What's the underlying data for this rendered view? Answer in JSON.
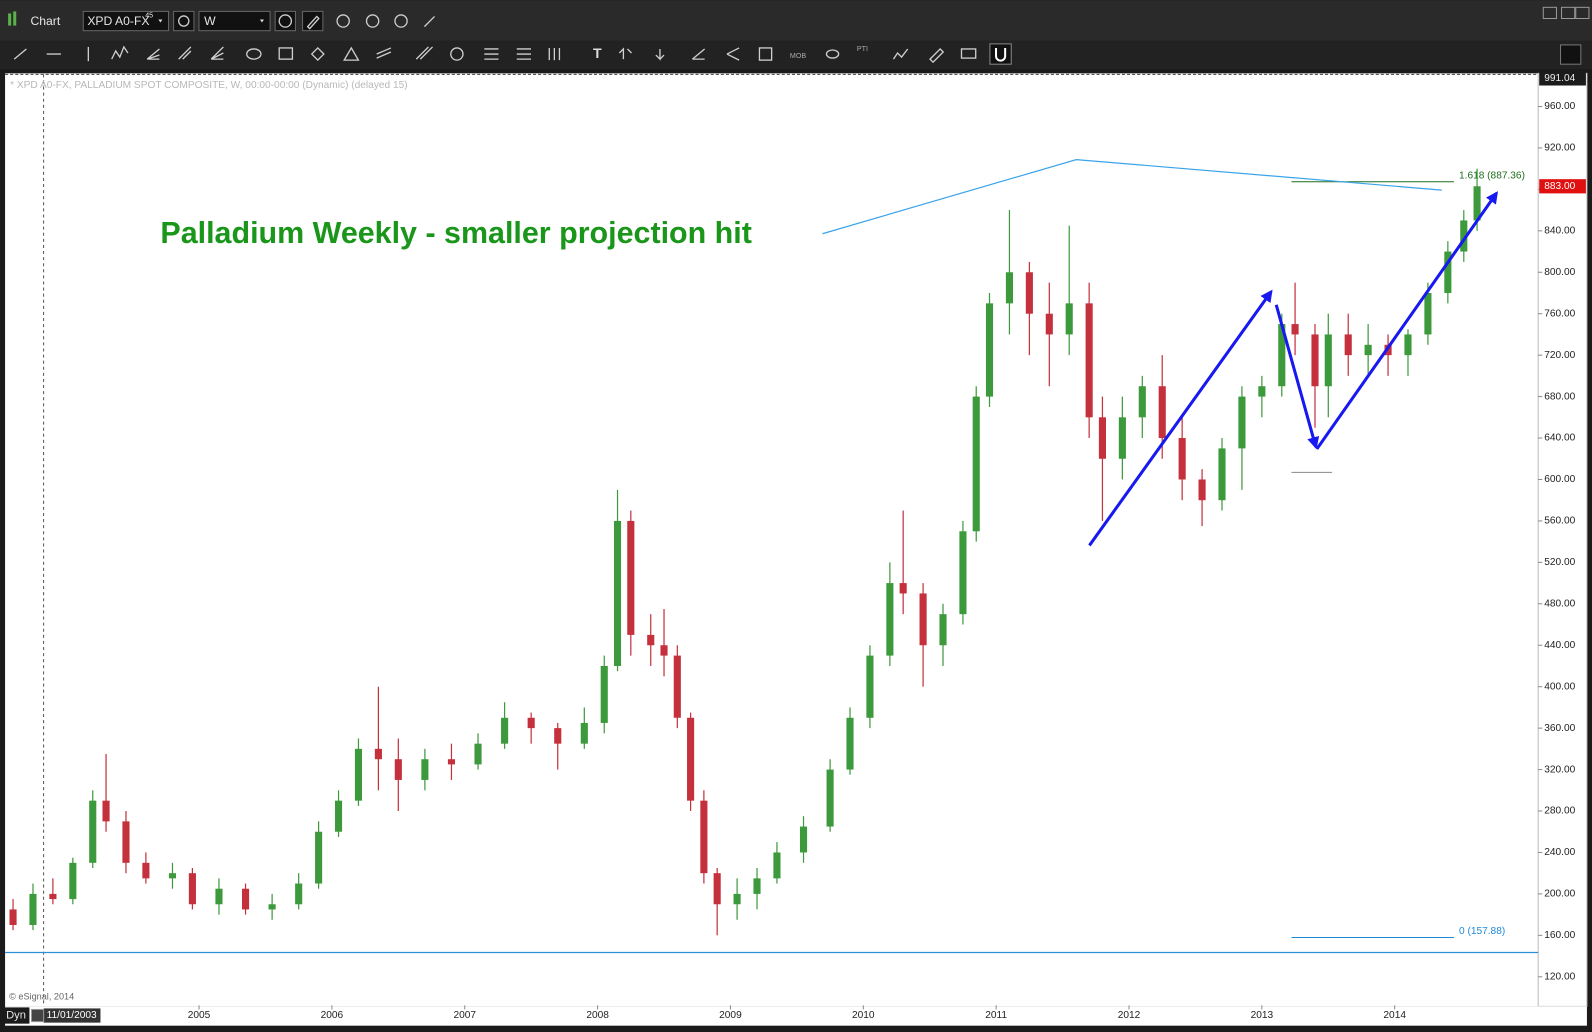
{
  "window": {
    "title": "Chart",
    "symbol": "XPD A0-FX",
    "symbol_sup": "45",
    "interval": "W",
    "toolbar_labels": [
      "T",
      "MOB",
      "PTI"
    ]
  },
  "chart_data": {
    "type": "candlestick",
    "title": "Palladium Weekly - smaller projection hit",
    "subtitle": "* XPD A0-FX, PALLADIUM SPOT COMPOSITE, W, 00:00-00:00 (Dynamic) (delayed 15)",
    "source": "© eSignal, 2014",
    "mode": "Dyn",
    "cursor": {
      "x": 2003.83,
      "label": "11/01/2003"
    },
    "x": [
      2003.6,
      2003.75,
      2003.9,
      2004.05,
      2004.2,
      2004.3,
      2004.45,
      2004.6,
      2004.8,
      2004.95,
      2005.15,
      2005.35,
      2005.55,
      2005.75,
      2005.9,
      2006.05,
      2006.2,
      2006.35,
      2006.5,
      2006.7,
      2006.9,
      2007.1,
      2007.3,
      2007.5,
      2007.7,
      2007.9,
      2008.05,
      2008.15,
      2008.25,
      2008.4,
      2008.5,
      2008.6,
      2008.7,
      2008.8,
      2008.9,
      2009.05,
      2009.2,
      2009.35,
      2009.55,
      2009.75,
      2009.9,
      2010.05,
      2010.2,
      2010.3,
      2010.45,
      2010.6,
      2010.75,
      2010.85,
      2010.95,
      2011.1,
      2011.25,
      2011.4,
      2011.55,
      2011.7,
      2011.8,
      2011.95,
      2012.1,
      2012.25,
      2012.4,
      2012.55,
      2012.7,
      2012.85,
      2013.0,
      2013.15,
      2013.25,
      2013.4,
      2013.5,
      2013.65,
      2013.8,
      2013.95,
      2014.1,
      2014.25,
      2014.4,
      2014.52,
      2014.62
    ],
    "open": [
      185,
      170,
      200,
      195,
      230,
      290,
      270,
      230,
      215,
      220,
      190,
      205,
      185,
      190,
      210,
      260,
      290,
      340,
      330,
      310,
      330,
      325,
      345,
      370,
      360,
      345,
      365,
      420,
      560,
      450,
      440,
      430,
      370,
      290,
      220,
      190,
      200,
      215,
      240,
      265,
      320,
      370,
      430,
      500,
      490,
      440,
      470,
      550,
      680,
      770,
      800,
      760,
      740,
      770,
      660,
      620,
      660,
      690,
      640,
      600,
      580,
      630,
      680,
      690,
      750,
      740,
      690,
      740,
      720,
      730,
      720,
      740,
      780,
      820,
      850
    ],
    "high": [
      195,
      210,
      215,
      235,
      300,
      335,
      280,
      240,
      230,
      225,
      215,
      210,
      200,
      220,
      270,
      300,
      350,
      400,
      350,
      340,
      345,
      355,
      385,
      375,
      365,
      380,
      430,
      590,
      570,
      470,
      475,
      440,
      375,
      300,
      225,
      215,
      225,
      250,
      275,
      330,
      380,
      440,
      520,
      570,
      500,
      480,
      560,
      690,
      780,
      860,
      810,
      790,
      845,
      790,
      680,
      680,
      700,
      720,
      660,
      610,
      640,
      690,
      700,
      760,
      790,
      750,
      760,
      760,
      750,
      740,
      745,
      790,
      830,
      860,
      900
    ],
    "low": [
      165,
      165,
      190,
      190,
      225,
      260,
      220,
      210,
      205,
      185,
      180,
      180,
      175,
      185,
      205,
      255,
      285,
      300,
      280,
      300,
      310,
      320,
      340,
      345,
      320,
      340,
      355,
      415,
      430,
      420,
      410,
      360,
      280,
      210,
      160,
      175,
      185,
      210,
      230,
      260,
      315,
      360,
      420,
      470,
      400,
      420,
      460,
      540,
      670,
      740,
      720,
      690,
      720,
      640,
      560,
      600,
      640,
      620,
      580,
      555,
      570,
      590,
      660,
      680,
      720,
      650,
      660,
      700,
      700,
      700,
      700,
      730,
      770,
      810,
      840
    ],
    "close": [
      170,
      200,
      195,
      230,
      290,
      270,
      230,
      215,
      220,
      190,
      205,
      185,
      190,
      210,
      260,
      290,
      340,
      330,
      310,
      330,
      325,
      345,
      370,
      360,
      345,
      365,
      420,
      560,
      450,
      440,
      430,
      370,
      290,
      220,
      190,
      200,
      215,
      240,
      265,
      320,
      370,
      430,
      500,
      490,
      440,
      470,
      550,
      680,
      770,
      800,
      760,
      740,
      770,
      660,
      620,
      660,
      690,
      640,
      600,
      580,
      630,
      680,
      690,
      750,
      740,
      690,
      740,
      720,
      730,
      720,
      740,
      780,
      820,
      850,
      883
    ],
    "up_color": "#3c9a3c",
    "down_color": "#c4303c",
    "xlim": [
      2003.54,
      2015.08
    ],
    "xticks": [
      2005,
      2006,
      2007,
      2008,
      2009,
      2010,
      2011,
      2012,
      2013,
      2014
    ],
    "ylim": [
      92.4,
      991.04
    ],
    "yticks": [
      {
        "value": 120,
        "label": "120.00"
      },
      {
        "value": 160,
        "label": "160.00"
      },
      {
        "value": 200,
        "label": "200.00"
      },
      {
        "value": 240,
        "label": "240.00"
      },
      {
        "value": 280,
        "label": "280.00"
      },
      {
        "value": 320,
        "label": "320.00"
      },
      {
        "value": 360,
        "label": "360.00"
      },
      {
        "value": 400,
        "label": "400.00"
      },
      {
        "value": 440,
        "label": "440.00"
      },
      {
        "value": 480,
        "label": "480.00"
      },
      {
        "value": 520,
        "label": "520.00"
      },
      {
        "value": 560,
        "label": "560.00"
      },
      {
        "value": 600,
        "label": "600.00"
      },
      {
        "value": 640,
        "label": "640.00"
      },
      {
        "value": 680,
        "label": "680.00"
      },
      {
        "value": 720,
        "label": "720.00"
      },
      {
        "value": 760,
        "label": "760.00"
      },
      {
        "value": 800,
        "label": "800.00"
      },
      {
        "value": 840,
        "label": "840.00"
      },
      {
        "value": 880,
        "label": "880.00"
      },
      {
        "value": 920,
        "label": "920.00"
      },
      {
        "value": 960,
        "label": "960.00"
      }
    ],
    "last_price": {
      "value": 883,
      "label": "883.00"
    },
    "fib_levels": [
      {
        "value": 887.36,
        "label": "1.618 (887.36)",
        "color": "#1f6e1f"
      },
      {
        "value": 157.88,
        "label": "0 (157.88)",
        "color": "#1e8ad6"
      }
    ],
    "hline": {
      "value": 143.4,
      "color": "#2a8fd6"
    }
  }
}
